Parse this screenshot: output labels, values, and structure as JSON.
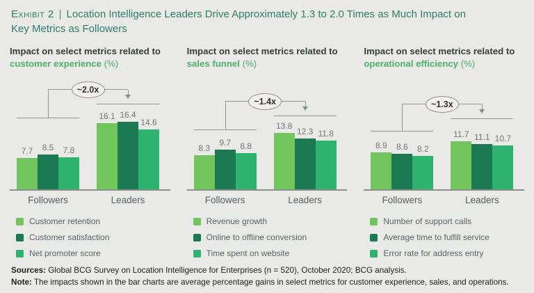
{
  "header": {
    "exhibit_label": "Exhibit 2",
    "separator": "|",
    "title": "Location Intelligence Leaders Drive Approximately 1.3 to 2.0 Times as Much Impact on Key Metrics as Followers"
  },
  "colors": {
    "background": "#e9e9e8",
    "title_teal": "#2f7e69",
    "heading_accent": "#4cb169",
    "series": [
      "#72c55c",
      "#1c7a52",
      "#2fb470"
    ],
    "line_gray": "#929496"
  },
  "panel_headings": [
    {
      "line1": "Impact on select metrics related to",
      "line2": "customer experience",
      "unit": "(%)"
    },
    {
      "line1": "Impact on select metrics related to",
      "line2": "sales funnel",
      "unit": "(%)"
    },
    {
      "line1": "Impact on select metrics related to",
      "line2": "operational efficiency",
      "unit": "(%)"
    }
  ],
  "chart_data": [
    {
      "type": "bar",
      "title": "Impact on select metrics related to customer experience (%)",
      "categories": [
        "Followers",
        "Leaders"
      ],
      "series": [
        {
          "name": "Customer retention",
          "values": [
            7.7,
            16.1
          ]
        },
        {
          "name": "Customer satisfaction",
          "values": [
            8.5,
            16.4
          ]
        },
        {
          "name": "Net promoter score",
          "values": [
            7.8,
            14.6
          ]
        }
      ],
      "annotation": "~2.0x",
      "ylabel": "%",
      "ylim": [
        0,
        20
      ],
      "grid": false,
      "legend_position": "bottom-left"
    },
    {
      "type": "bar",
      "title": "Impact on select metrics related to sales funnel (%)",
      "categories": [
        "Followers",
        "Leaders"
      ],
      "series": [
        {
          "name": "Revenue growth",
          "values": [
            8.3,
            13.8
          ]
        },
        {
          "name": "Online to offline conversion",
          "values": [
            9.7,
            12.3
          ]
        },
        {
          "name": "Time spent on website",
          "values": [
            8.8,
            11.8
          ]
        }
      ],
      "annotation": "~1.4x",
      "ylabel": "%",
      "ylim": [
        0,
        20
      ],
      "grid": false,
      "legend_position": "bottom-left"
    },
    {
      "type": "bar",
      "title": "Impact on select metrics related to operational efficiency (%)",
      "categories": [
        "Followers",
        "Leaders"
      ],
      "series": [
        {
          "name": "Number of support calls",
          "values": [
            8.9,
            11.7
          ]
        },
        {
          "name": "Average time to fulfill service",
          "values": [
            8.6,
            11.1
          ]
        },
        {
          "name": "Error rate for address entry",
          "values": [
            8.2,
            10.7
          ]
        }
      ],
      "annotation": "~1.3x",
      "ylabel": "%",
      "ylim": [
        0,
        20
      ],
      "grid": false,
      "legend_position": "bottom-left"
    }
  ],
  "footer": {
    "sources_label": "Sources:",
    "sources_text": " Global BCG Survey on Location Intelligence for Enterprises (n = 520), October 2020; BCG analysis.",
    "note_label": "Note:",
    "note_text": " The impacts shown in the bar charts are average percentage gains in select metrics for customer experience, sales, and operations."
  }
}
